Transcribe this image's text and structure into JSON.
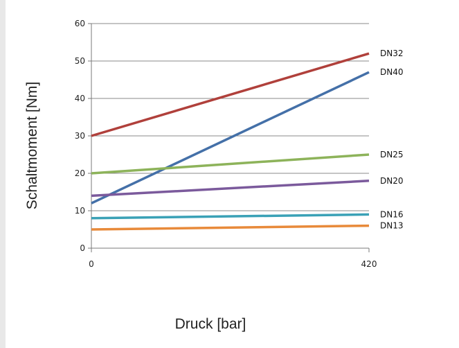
{
  "chart_data": {
    "type": "line",
    "xlabel": "Druck [bar]",
    "ylabel": "Schaltmoment [Nm]",
    "x": [
      0,
      420
    ],
    "x_ticks": [
      "0",
      "420"
    ],
    "y_ticks": [
      "0",
      "10",
      "20",
      "30",
      "40",
      "50",
      "60"
    ],
    "ylim": [
      0,
      60
    ],
    "xlim": [
      0,
      420
    ],
    "grid": true,
    "legend": "inline-right",
    "series": [
      {
        "name": "DN32",
        "values": [
          30,
          52
        ],
        "color": "#b0403b"
      },
      {
        "name": "DN40",
        "values": [
          12,
          47
        ],
        "color": "#4470a8"
      },
      {
        "name": "DN25",
        "values": [
          20,
          25
        ],
        "color": "#8db35a"
      },
      {
        "name": "DN20",
        "values": [
          14,
          18
        ],
        "color": "#7b5a9c"
      },
      {
        "name": "DN16",
        "values": [
          8,
          9
        ],
        "color": "#3aa1b6"
      },
      {
        "name": "DN13",
        "values": [
          5,
          6
        ],
        "color": "#e88a3a"
      }
    ]
  }
}
